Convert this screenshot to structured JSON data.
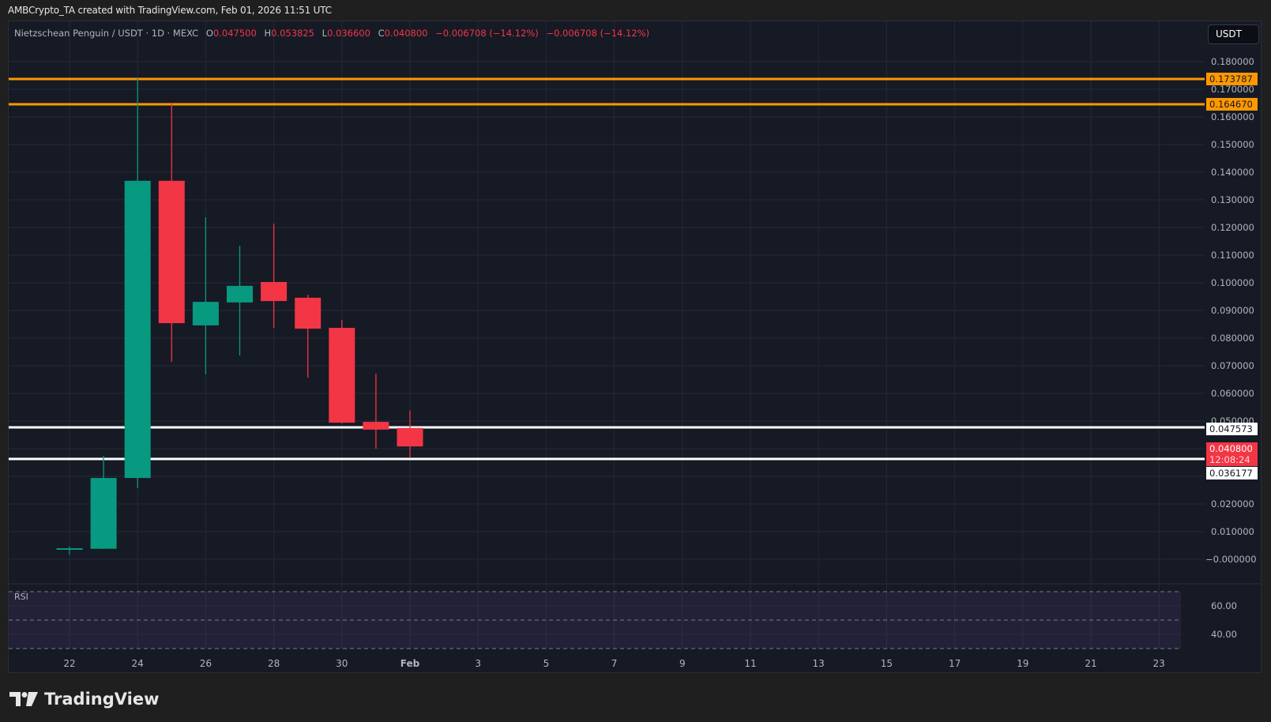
{
  "caption": "AMBCrypto_TA created with TradingView.com, Feb 01, 2026 11:51 UTC",
  "legend": {
    "symbol": "Nietzschean Penguin / USDT · 1D · MEXC",
    "open_label": "O",
    "open": "0.047500",
    "high_label": "H",
    "high": "0.053825",
    "low_label": "L",
    "low": "0.036600",
    "close_label": "C",
    "close": "0.040800",
    "change1": "−0.006708 (−14.12%)",
    "change2": "−0.006708 (−14.12%)"
  },
  "currency_button": "USDT",
  "price_tags": {
    "orange_1": "0.173787",
    "orange_2": "0.164670",
    "white_1": "0.047573",
    "white_2": "0.036177",
    "last_price": "0.040800",
    "countdown": "12:08:24"
  },
  "rsi": {
    "label": "RSI",
    "ticks": [
      "60.00",
      "40.00"
    ]
  },
  "brand": "TradingView",
  "colors": {
    "up": "#089981",
    "down": "#f23645",
    "orange": "#ff9800",
    "white": "#ffffff",
    "bg": "#161a25",
    "grid": "#252936"
  },
  "chart_data": {
    "type": "candlestick",
    "title": "Nietzschean Penguin / USDT · 1D · MEXC",
    "xlabel": "",
    "ylabel": "USDT",
    "ylim": [
      -0.005,
      0.18
    ],
    "grid": true,
    "y_ticks": [
      "0.180000",
      "0.170000",
      "0.160000",
      "0.150000",
      "0.140000",
      "0.130000",
      "0.120000",
      "0.110000",
      "0.100000",
      "0.090000",
      "0.080000",
      "0.070000",
      "0.060000",
      "0.050000",
      "0.040000",
      "0.030000",
      "0.020000",
      "0.010000",
      "−0.000000"
    ],
    "x_ticks": [
      "22",
      "24",
      "26",
      "28",
      "30",
      "Feb",
      "3",
      "5",
      "7",
      "9",
      "11",
      "13",
      "15",
      "17",
      "19",
      "21",
      "23"
    ],
    "categories": [
      "Jan 22",
      "Jan 23",
      "Jan 24",
      "Jan 25",
      "Jan 26",
      "Jan 27",
      "Jan 28",
      "Jan 29",
      "Jan 30",
      "Jan 31",
      "Feb 1"
    ],
    "open": [
      0.0035,
      0.0038,
      0.0294,
      0.1369,
      0.0846,
      0.0929,
      0.1003,
      0.0946,
      0.0837,
      0.0497,
      0.0475
    ],
    "high": [
      0.0046,
      0.0374,
      0.1743,
      0.1651,
      0.1237,
      0.1134,
      0.1214,
      0.0957,
      0.0866,
      0.0671,
      0.0538
    ],
    "low": [
      0.0017,
      0.0037,
      0.0257,
      0.0714,
      0.0669,
      0.0737,
      0.0837,
      0.0657,
      0.0491,
      0.04,
      0.0366
    ],
    "close": [
      0.004,
      0.0294,
      0.1369,
      0.0854,
      0.0931,
      0.0989,
      0.0934,
      0.0834,
      0.0494,
      0.0469,
      0.0408
    ],
    "horizontal_lines": [
      {
        "value": 0.173787,
        "color": "#ff9800"
      },
      {
        "value": 0.16467,
        "color": "#ff9800"
      },
      {
        "value": 0.047573,
        "color": "#ffffff"
      },
      {
        "value": 0.036177,
        "color": "#ffffff"
      }
    ],
    "last_price": 0.0408,
    "rsi_pane": {
      "label": "RSI",
      "y_ticks": [
        "60.00",
        "40.00"
      ],
      "bands": [
        70,
        50,
        30
      ]
    }
  }
}
